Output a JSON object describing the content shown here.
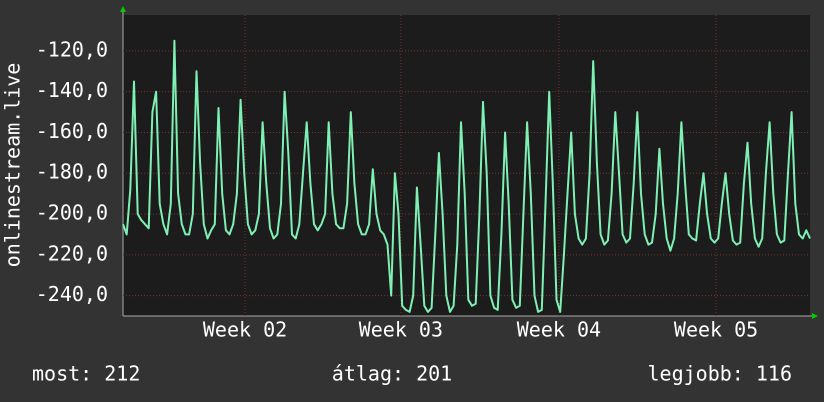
{
  "chart_data": {
    "type": "line",
    "ylabel": "onlinestream.live",
    "stats": [
      "most: 212",
      "átlag: 201",
      "legjobb: 116"
    ],
    "ylim": [
      -250,
      -102.4
    ],
    "yticks": [
      {
        "value": -240,
        "label": "-240,0"
      },
      {
        "value": -220,
        "label": "-220,0"
      },
      {
        "value": -200,
        "label": "-200,0"
      },
      {
        "value": -180,
        "label": "-180,0"
      },
      {
        "value": -160,
        "label": "-160,0"
      },
      {
        "value": -140,
        "label": "-140,0"
      },
      {
        "value": -120,
        "label": "-120,0"
      }
    ],
    "xlim": [
      0,
      31.3
    ],
    "xticks": [
      {
        "value": 5.56,
        "label": "Week 02"
      },
      {
        "value": 12.66,
        "label": "Week 03"
      },
      {
        "value": 19.86,
        "label": "Week 04"
      },
      {
        "value": 27.02,
        "label": "Week 05"
      }
    ],
    "grid": true,
    "series": [
      {
        "color": "#7ff0b4",
        "values": [
          -205,
          -210,
          -188,
          -135,
          -200,
          -203,
          -205,
          -207,
          -150,
          -140,
          -195,
          -205,
          -210,
          -195,
          -115,
          -190,
          -205,
          -210,
          -210,
          -200,
          -130,
          -175,
          -205,
          -212,
          -208,
          -205,
          -148,
          -190,
          -208,
          -210,
          -205,
          -190,
          -144,
          -180,
          -205,
          -210,
          -208,
          -200,
          -155,
          -185,
          -207,
          -212,
          -210,
          -195,
          -140,
          -170,
          -210,
          -212,
          -205,
          -180,
          -155,
          -185,
          -205,
          -208,
          -205,
          -200,
          -155,
          -190,
          -205,
          -207,
          -207,
          -195,
          -150,
          -185,
          -205,
          -210,
          -210,
          -205,
          -178,
          -200,
          -208,
          -210,
          -215,
          -240,
          -180,
          -200,
          -245,
          -247,
          -248,
          -240,
          -187,
          -215,
          -245,
          -248,
          -246,
          -210,
          -170,
          -200,
          -240,
          -248,
          -245,
          -215,
          -155,
          -190,
          -242,
          -245,
          -244,
          -200,
          -145,
          -180,
          -240,
          -246,
          -247,
          -210,
          -160,
          -195,
          -242,
          -246,
          -245,
          -200,
          -155,
          -190,
          -240,
          -248,
          -247,
          -195,
          -140,
          -185,
          -242,
          -248,
          -220,
          -190,
          -160,
          -200,
          -212,
          -215,
          -212,
          -180,
          -125,
          -175,
          -210,
          -215,
          -213,
          -190,
          -150,
          -180,
          -210,
          -214,
          -212,
          -185,
          -150,
          -190,
          -210,
          -215,
          -214,
          -200,
          -168,
          -195,
          -212,
          -218,
          -212,
          -190,
          -155,
          -185,
          -210,
          -212,
          -213,
          -195,
          -180,
          -200,
          -212,
          -214,
          -212,
          -195,
          -180,
          -200,
          -213,
          -215,
          -214,
          -185,
          -165,
          -195,
          -212,
          -216,
          -212,
          -180,
          -155,
          -190,
          -210,
          -214,
          -213,
          -180,
          -150,
          -195,
          -210,
          -212,
          -208,
          -212
        ]
      }
    ]
  }
}
